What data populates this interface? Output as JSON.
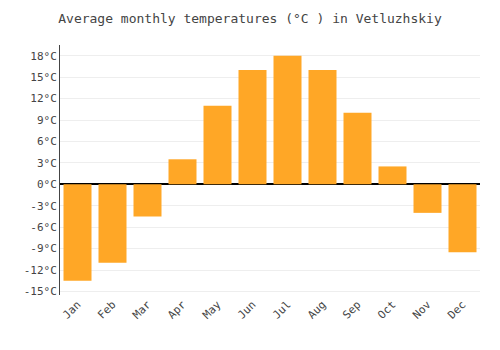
{
  "chart_data": {
    "type": "bar",
    "title": "Average monthly temperatures (°C ) in Vetluzhskiy",
    "categories": [
      "Jan",
      "Feb",
      "Mar",
      "Apr",
      "May",
      "Jun",
      "Jul",
      "Aug",
      "Sep",
      "Oct",
      "Nov",
      "Dec"
    ],
    "values": [
      -13.5,
      -11,
      -4.5,
      3.5,
      11,
      16,
      18,
      16,
      10,
      2.5,
      -4,
      -9.5
    ],
    "color": "#FFA726",
    "ylim": [
      -15.5,
      19.5
    ],
    "yticks": [
      {
        "value": -15,
        "label": "-15°C"
      },
      {
        "value": -12,
        "label": "-12°C"
      },
      {
        "value": -9,
        "label": "-9°C"
      },
      {
        "value": -6,
        "label": "-6°C"
      },
      {
        "value": -3,
        "label": "-3°C"
      },
      {
        "value": 0,
        "label": "0°C"
      },
      {
        "value": 3,
        "label": "3°C"
      },
      {
        "value": 6,
        "label": "6°C"
      },
      {
        "value": 9,
        "label": "9°C"
      },
      {
        "value": 12,
        "label": "12°C"
      },
      {
        "value": 15,
        "label": "15°C"
      },
      {
        "value": 18,
        "label": "18°C"
      }
    ],
    "grid": true
  }
}
